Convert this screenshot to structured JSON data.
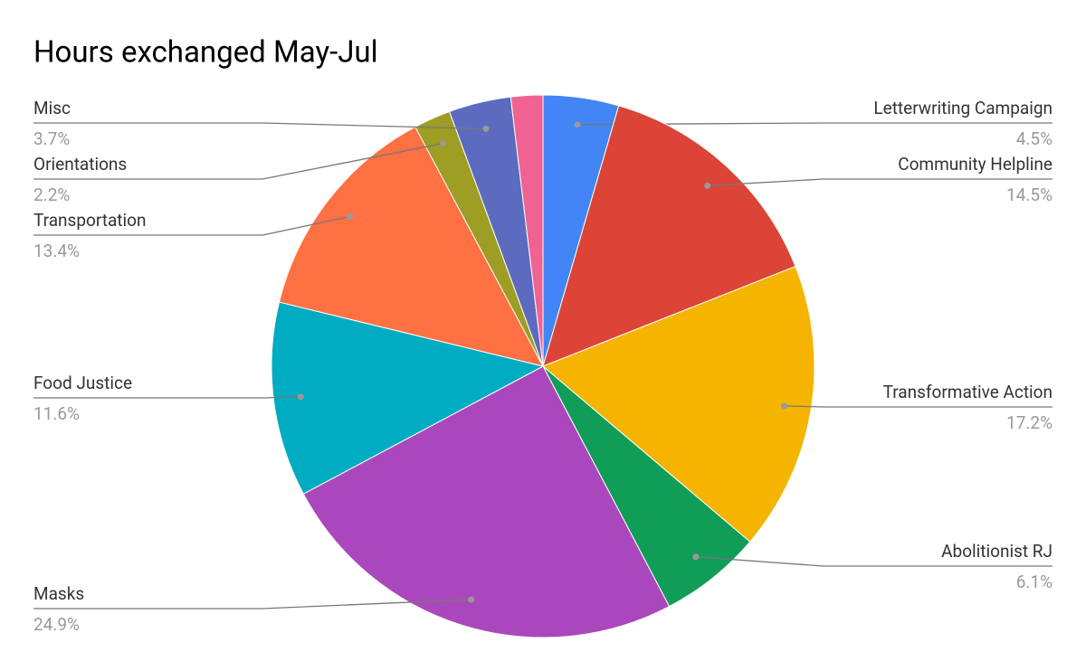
{
  "chart_data": {
    "type": "pie",
    "title": "Hours exchanged May-Jul",
    "categories": [
      "Letterwriting Campaign",
      "Community Helpline",
      "Transformative Action",
      "Abolitionist RJ",
      "Masks",
      "Food Justice",
      "Transportation",
      "Orientations",
      "Misc",
      null
    ],
    "values": [
      4.5,
      14.5,
      17.2,
      6.1,
      24.9,
      11.6,
      13.4,
      2.2,
      3.7,
      1.9
    ],
    "value_labels": [
      "4.5%",
      "14.5%",
      "17.2%",
      "6.1%",
      "24.9%",
      "11.6%",
      "13.4%",
      "2.2%",
      "3.7%",
      null
    ],
    "colors": [
      "#4285f4",
      "#db4437",
      "#f4b400",
      "#0f9d58",
      "#ab47bc",
      "#00acc1",
      "#ff7043",
      "#9e9d24",
      "#5c6bc0",
      "#f06292"
    ]
  }
}
